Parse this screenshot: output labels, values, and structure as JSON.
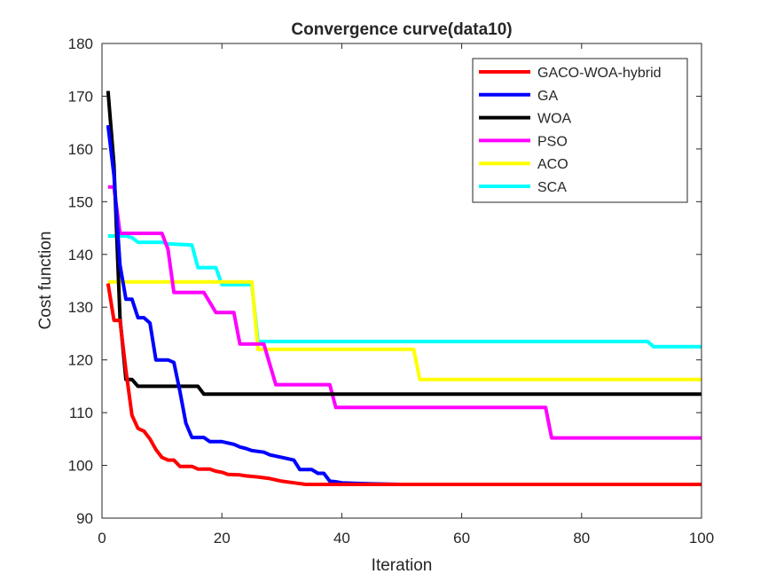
{
  "chart_data": {
    "type": "line",
    "title": "Convergence curve(data10)",
    "xlabel": "Iteration",
    "ylabel": "Cost function",
    "xlim": [
      0,
      100
    ],
    "ylim": [
      90,
      180
    ],
    "xticks": [
      0,
      20,
      40,
      60,
      80,
      100
    ],
    "yticks": [
      90,
      100,
      110,
      120,
      130,
      140,
      150,
      160,
      170,
      180
    ],
    "grid": false,
    "legend_position": "top-right",
    "series": [
      {
        "name": "GACO-WOA-hybrid",
        "color": "#ff0000",
        "points": [
          [
            1,
            134.5
          ],
          [
            2,
            127.5
          ],
          [
            3,
            127.5
          ],
          [
            4,
            118
          ],
          [
            5,
            109.5
          ],
          [
            6,
            107
          ],
          [
            7,
            106.5
          ],
          [
            8,
            105
          ],
          [
            9,
            103
          ],
          [
            10,
            101.5
          ],
          [
            11,
            101
          ],
          [
            12,
            101
          ],
          [
            13,
            99.8
          ],
          [
            15,
            99.8
          ],
          [
            16,
            99.3
          ],
          [
            18,
            99.3
          ],
          [
            19,
            98.9
          ],
          [
            20,
            98.7
          ],
          [
            21,
            98.3
          ],
          [
            23,
            98.2
          ],
          [
            24,
            98
          ],
          [
            26,
            97.8
          ],
          [
            28,
            97.5
          ],
          [
            30,
            97
          ],
          [
            32,
            96.7
          ],
          [
            34,
            96.4
          ],
          [
            100,
            96.4
          ]
        ]
      },
      {
        "name": "GA",
        "color": "#0000ff",
        "points": [
          [
            1,
            164.5
          ],
          [
            2,
            155
          ],
          [
            3,
            138
          ],
          [
            4,
            131.5
          ],
          [
            5,
            131.5
          ],
          [
            6,
            128
          ],
          [
            7,
            128
          ],
          [
            8,
            127
          ],
          [
            9,
            120
          ],
          [
            11,
            120
          ],
          [
            12,
            119.5
          ],
          [
            13,
            114
          ],
          [
            14,
            108
          ],
          [
            15,
            105.3
          ],
          [
            17,
            105.3
          ],
          [
            18,
            104.5
          ],
          [
            20,
            104.5
          ],
          [
            22,
            104
          ],
          [
            23,
            103.5
          ],
          [
            24,
            103.2
          ],
          [
            25,
            102.8
          ],
          [
            27,
            102.5
          ],
          [
            28,
            102
          ],
          [
            30,
            101.5
          ],
          [
            32,
            101
          ],
          [
            33,
            99.2
          ],
          [
            35,
            99.2
          ],
          [
            36,
            98.5
          ],
          [
            37,
            98.5
          ],
          [
            38,
            97
          ],
          [
            39,
            96.9
          ],
          [
            40,
            96.7
          ],
          [
            42,
            96.6
          ],
          [
            45,
            96.5
          ],
          [
            50,
            96.4
          ],
          [
            100,
            96.4
          ]
        ]
      },
      {
        "name": "WOA",
        "color": "#000000",
        "points": [
          [
            1,
            171
          ],
          [
            2,
            157
          ],
          [
            3,
            128
          ],
          [
            4,
            116.3
          ],
          [
            5,
            116.3
          ],
          [
            6,
            115
          ],
          [
            16,
            115
          ],
          [
            17,
            113.5
          ],
          [
            100,
            113.5
          ]
        ]
      },
      {
        "name": "PSO",
        "color": "#ff00ff",
        "points": [
          [
            1,
            152.8
          ],
          [
            2,
            152.8
          ],
          [
            3,
            144
          ],
          [
            10,
            144
          ],
          [
            11,
            141
          ],
          [
            12,
            132.8
          ],
          [
            17,
            132.8
          ],
          [
            19,
            129
          ],
          [
            22,
            129
          ],
          [
            23,
            123
          ],
          [
            27,
            123
          ],
          [
            29,
            115.3
          ],
          [
            38,
            115.3
          ],
          [
            39,
            111
          ],
          [
            74,
            111
          ],
          [
            75,
            105.2
          ],
          [
            100,
            105.2
          ]
        ]
      },
      {
        "name": "ACO",
        "color": "#ffff00",
        "points": [
          [
            1,
            134.8
          ],
          [
            25,
            134.8
          ],
          [
            26,
            122
          ],
          [
            52,
            122
          ],
          [
            53,
            116.3
          ],
          [
            100,
            116.3
          ]
        ]
      },
      {
        "name": "SCA",
        "color": "#00ffff",
        "points": [
          [
            1,
            143.5
          ],
          [
            4,
            143.5
          ],
          [
            5,
            143.2
          ],
          [
            6,
            142.3
          ],
          [
            10,
            142.3
          ],
          [
            11,
            142
          ],
          [
            15,
            141.8
          ],
          [
            16,
            137.5
          ],
          [
            19,
            137.5
          ],
          [
            20,
            134.3
          ],
          [
            25,
            134.3
          ],
          [
            26,
            123.5
          ],
          [
            91,
            123.5
          ],
          [
            92,
            122.5
          ],
          [
            100,
            122.5
          ]
        ]
      }
    ]
  }
}
